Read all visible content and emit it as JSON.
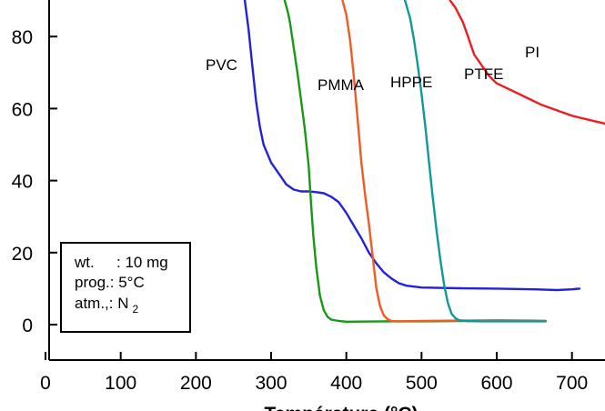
{
  "chart_data": {
    "type": "line",
    "title": "",
    "xlabel": "Température (°C)",
    "ylabel": "",
    "xlim": [
      0,
      750
    ],
    "ylim": [
      -10,
      90
    ],
    "x_ticks": [
      0,
      100,
      200,
      300,
      400,
      500,
      600,
      700
    ],
    "y_ticks": [
      0,
      20,
      40,
      60,
      80
    ],
    "grid": false,
    "legend": "none",
    "series": [
      {
        "name": "PVC",
        "color": "#2222dd",
        "x": [
          265,
          270,
          275,
          280,
          285,
          290,
          300,
          310,
          320,
          330,
          340,
          350,
          360,
          370,
          380,
          390,
          400,
          410,
          420,
          430,
          440,
          450,
          460,
          470,
          480,
          500,
          550,
          600,
          650,
          680,
          700,
          710
        ],
        "y": [
          90,
          82,
          72,
          62,
          55,
          50,
          45,
          42,
          39,
          37.5,
          37,
          37,
          36.8,
          36.5,
          35.5,
          34,
          31,
          27.5,
          24,
          20,
          17,
          14.5,
          12.8,
          11.5,
          10.8,
          10.3,
          10.1,
          10,
          9.8,
          9.6,
          9.8,
          10
        ]
      },
      {
        "name": "PMMA",
        "color": "#179917",
        "x": [
          318,
          322,
          325,
          330,
          335,
          340,
          345,
          350,
          353,
          356,
          360,
          365,
          370,
          375,
          380,
          390,
          400,
          450,
          500,
          550,
          600,
          650,
          665
        ],
        "y": [
          90,
          87,
          84,
          77,
          70,
          62,
          54,
          44,
          34,
          25,
          16,
          8,
          4,
          2.2,
          1.4,
          1.0,
          0.8,
          0.9,
          0.9,
          1.0,
          1.0,
          1.0,
          1.0
        ]
      },
      {
        "name": "HPPE",
        "color": "#f15a22",
        "x": [
          395,
          400,
          405,
          410,
          415,
          420,
          425,
          430,
          435,
          440,
          445,
          450,
          455,
          460,
          470,
          500,
          550,
          600,
          650,
          665
        ],
        "y": [
          90,
          86,
          79,
          69,
          57,
          45,
          36,
          28,
          19,
          10,
          5,
          2.5,
          1.5,
          1.0,
          0.9,
          1.0,
          1.1,
          1.2,
          1.1,
          1.0
        ]
      },
      {
        "name": "PTFE",
        "color": "#119999",
        "x": [
          478,
          485,
          490,
          495,
          500,
          505,
          510,
          515,
          520,
          525,
          530,
          535,
          540,
          545,
          550,
          560,
          580,
          600,
          650,
          665
        ],
        "y": [
          90,
          85,
          79,
          72,
          64,
          55,
          45,
          35,
          26,
          18,
          11,
          6,
          3,
          1.8,
          1.2,
          1.0,
          0.9,
          0.9,
          0.9,
          0.9
        ]
      },
      {
        "name": "PI",
        "color": "#ee1c24",
        "x": [
          538,
          545,
          550,
          555,
          560,
          565,
          570,
          580,
          590,
          600,
          620,
          640,
          660,
          680,
          700,
          720,
          740,
          750
        ],
        "y": [
          90,
          88,
          86,
          84,
          81,
          78,
          75,
          72,
          69,
          67,
          65,
          63,
          61,
          59.5,
          58,
          57,
          56,
          55.5
        ]
      }
    ],
    "annotations": {
      "wt_key": "wt.",
      "wt_val": ": 10 mg",
      "prog": "prog.: 5°C",
      "atm_prefix": "atm.,: N",
      "atm_sub": "2"
    }
  }
}
